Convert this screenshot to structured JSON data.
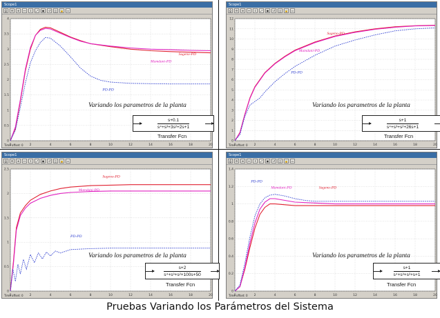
{
  "caption": "Pruebas Variando los Parámetros del Sistema",
  "window_title": "Scope1",
  "status_text": "Time offset:  0",
  "overlay_text": "Variando los parametros de la planta",
  "tf_label": "Transfer Fcn",
  "colors": {
    "sugeno": "#e02030",
    "mamdani": "#e020c0",
    "pd": "#3040d0",
    "plot_bg": "#ffffff"
  },
  "chart_data": [
    {
      "type": "line",
      "panel": "top-left",
      "xlim": [
        0,
        20
      ],
      "ylim": [
        0,
        4
      ],
      "x_ticks": [
        "0",
        "2",
        "4",
        "6",
        "8",
        "10",
        "12",
        "14",
        "16",
        "18",
        "20"
      ],
      "y_ticks": [
        "0",
        "0.5",
        "1",
        "1.5",
        "2",
        "2.5",
        "3",
        "3.5",
        "4"
      ],
      "transfer_function": {
        "num": "s+0.1",
        "den": "s⁴+s³+3s²+2s+1"
      },
      "series": [
        {
          "name": "Sugeno-PD",
          "x": [
            0,
            0.5,
            1,
            1.5,
            2,
            2.5,
            3,
            3.5,
            4,
            5,
            6,
            7,
            8,
            10,
            12,
            14,
            16,
            18,
            20
          ],
          "y": [
            0,
            0.4,
            1.3,
            2.3,
            3.0,
            3.45,
            3.65,
            3.72,
            3.7,
            3.55,
            3.4,
            3.28,
            3.18,
            3.08,
            3.0,
            2.95,
            2.92,
            2.9,
            2.88
          ]
        },
        {
          "name": "Mamdani-PD",
          "x": [
            0,
            0.5,
            1,
            1.5,
            2,
            2.5,
            3,
            3.5,
            4,
            5,
            6,
            7,
            8,
            10,
            12,
            14,
            16,
            18,
            20
          ],
          "y": [
            0,
            0.45,
            1.35,
            2.35,
            3.05,
            3.45,
            3.62,
            3.68,
            3.66,
            3.52,
            3.38,
            3.26,
            3.18,
            3.1,
            3.04,
            3.0,
            2.98,
            2.96,
            2.95
          ]
        },
        {
          "name": "PD-PD",
          "x": [
            0,
            0.5,
            1,
            1.5,
            2,
            2.5,
            3,
            3.5,
            4,
            5,
            6,
            7,
            8,
            9,
            10,
            12,
            14,
            16,
            18,
            20
          ],
          "y": [
            0,
            0.35,
            1.1,
            1.9,
            2.55,
            2.95,
            3.22,
            3.38,
            3.36,
            3.1,
            2.75,
            2.38,
            2.12,
            1.98,
            1.92,
            1.88,
            1.87,
            1.86,
            1.86,
            1.86
          ]
        }
      ]
    },
    {
      "type": "line",
      "panel": "top-right",
      "xlim": [
        0,
        20
      ],
      "ylim": [
        0,
        12
      ],
      "x_ticks": [
        "0",
        "2",
        "4",
        "6",
        "8",
        "10",
        "12",
        "14",
        "16",
        "18",
        "20"
      ],
      "y_ticks": [
        "0",
        "1",
        "2",
        "3",
        "4",
        "5",
        "6",
        "7",
        "8",
        "9",
        "10",
        "11",
        "12"
      ],
      "transfer_function": {
        "num": "s+1",
        "den": "s⁴+s³+s²+26s+1"
      },
      "series": [
        {
          "name": "Sugeno-PD",
          "x": [
            0,
            0.5,
            1,
            1.5,
            2,
            3,
            4,
            5,
            6,
            8,
            10,
            12,
            14,
            16,
            18,
            20
          ],
          "y": [
            0,
            0.8,
            2.6,
            4.2,
            5.3,
            6.7,
            7.6,
            8.3,
            8.9,
            9.7,
            10.3,
            10.7,
            11.0,
            11.2,
            11.3,
            11.35
          ]
        },
        {
          "name": "Mamdani-PD",
          "x": [
            0,
            0.5,
            1,
            1.5,
            2,
            3,
            4,
            5,
            6,
            8,
            10,
            12,
            14,
            16,
            18,
            20
          ],
          "y": [
            0,
            0.75,
            2.55,
            4.15,
            5.25,
            6.65,
            7.55,
            8.25,
            8.85,
            9.65,
            10.25,
            10.65,
            10.95,
            11.15,
            11.28,
            11.33
          ]
        },
        {
          "name": "PD-PD",
          "x": [
            0,
            0.5,
            1,
            1.5,
            2,
            2.5,
            3,
            4,
            5,
            6,
            8,
            10,
            12,
            14,
            16,
            18,
            20
          ],
          "y": [
            0,
            0.6,
            2.4,
            3.5,
            3.85,
            4.2,
            4.8,
            5.8,
            6.6,
            7.3,
            8.4,
            9.3,
            9.9,
            10.4,
            10.8,
            11.0,
            11.1
          ]
        }
      ]
    },
    {
      "type": "line",
      "panel": "bottom-left",
      "xlim": [
        0,
        20
      ],
      "ylim": [
        0,
        2.5
      ],
      "x_ticks": [
        "0",
        "2",
        "4",
        "6",
        "8",
        "10",
        "12",
        "14",
        "16",
        "18",
        "20"
      ],
      "y_ticks": [
        "0",
        "0.5",
        "1",
        "1.5",
        "2",
        "2.5"
      ],
      "transfer_function": {
        "num": "s+2",
        "den": "s⁴+s³+s²+100s+50"
      },
      "series": [
        {
          "name": "Sugeno-PD",
          "x": [
            0,
            0.3,
            0.6,
            1,
            1.5,
            2,
            3,
            4,
            5,
            6,
            8,
            10,
            12,
            14,
            16,
            18,
            20
          ],
          "y": [
            0,
            0.6,
            1.3,
            1.6,
            1.75,
            1.86,
            1.98,
            2.05,
            2.1,
            2.13,
            2.16,
            2.17,
            2.18,
            2.18,
            2.18,
            2.18,
            2.18
          ]
        },
        {
          "name": "Mamdani-PD",
          "x": [
            0,
            0.3,
            0.6,
            1,
            1.5,
            2,
            3,
            4,
            5,
            6,
            8,
            10,
            12,
            14,
            16,
            18,
            20
          ],
          "y": [
            0,
            0.55,
            1.25,
            1.55,
            1.7,
            1.8,
            1.9,
            1.96,
            2.0,
            2.02,
            2.04,
            2.05,
            2.05,
            2.05,
            2.05,
            2.05,
            2.05
          ]
        },
        {
          "name": "PD-PD",
          "x": [
            0,
            0.25,
            0.5,
            0.75,
            1,
            1.3,
            1.6,
            2,
            2.4,
            2.8,
            3.2,
            3.6,
            4,
            4.5,
            5,
            6,
            7,
            8,
            10,
            12,
            14,
            16,
            18,
            20
          ],
          "y": [
            0,
            0.45,
            0.2,
            0.55,
            0.35,
            0.65,
            0.45,
            0.75,
            0.58,
            0.78,
            0.66,
            0.8,
            0.72,
            0.82,
            0.78,
            0.85,
            0.86,
            0.87,
            0.88,
            0.88,
            0.88,
            0.88,
            0.88,
            0.88
          ]
        }
      ]
    },
    {
      "type": "line",
      "panel": "bottom-right",
      "xlim": [
        0,
        20
      ],
      "ylim": [
        0,
        1.4
      ],
      "x_ticks": [
        "0",
        "2",
        "4",
        "6",
        "8",
        "10",
        "12",
        "14",
        "16",
        "18",
        "20"
      ],
      "y_ticks": [
        "0",
        "0.2",
        "0.4",
        "0.6",
        "0.8",
        "1",
        "1.2",
        "1.4"
      ],
      "transfer_function": {
        "num": "s+1",
        "den": "s⁴+s³+s²+s+1"
      },
      "series": [
        {
          "name": "Sugeno-PD",
          "x": [
            0,
            0.5,
            1,
            1.5,
            2,
            2.5,
            3,
            3.5,
            4,
            5,
            6,
            8,
            10,
            12,
            14,
            16,
            18,
            20
          ],
          "y": [
            0,
            0.05,
            0.25,
            0.5,
            0.72,
            0.88,
            0.96,
            1.0,
            1.0,
            0.99,
            0.98,
            0.98,
            0.98,
            0.98,
            0.98,
            0.98,
            0.98,
            0.98
          ]
        },
        {
          "name": "Mamdani-PD",
          "x": [
            0,
            0.5,
            1,
            1.5,
            2,
            2.5,
            3,
            3.5,
            4,
            5,
            6,
            8,
            10,
            12,
            14,
            16,
            18,
            20
          ],
          "y": [
            0,
            0.05,
            0.27,
            0.55,
            0.78,
            0.94,
            1.02,
            1.06,
            1.06,
            1.04,
            1.02,
            1.01,
            1.0,
            1.0,
            1.0,
            1.0,
            1.0,
            1.0
          ]
        },
        {
          "name": "PD-PD",
          "x": [
            0,
            0.5,
            1,
            1.5,
            2,
            2.5,
            3,
            3.5,
            4,
            4.5,
            5,
            6,
            7,
            8,
            10,
            12,
            14,
            16,
            18,
            20
          ],
          "y": [
            0,
            0.07,
            0.32,
            0.62,
            0.86,
            1.0,
            1.07,
            1.1,
            1.11,
            1.1,
            1.09,
            1.06,
            1.04,
            1.03,
            1.03,
            1.03,
            1.03,
            1.03,
            1.03,
            1.03
          ]
        }
      ]
    }
  ],
  "labels": {
    "top-left": {
      "Sugeno-PD": "Sugeno-PD",
      "Mamdani-PD": "Mamdani-PD",
      "PD-PD": "PD-PD"
    },
    "top-right": {
      "Sugeno-PD": "Sugeno-PD",
      "Mamdani-PD": "Mamdani-PD",
      "PD-PD": "PD-PD"
    },
    "bottom-left": {
      "Sugeno-PD": "Sugeno-PD",
      "Mamdani-PD": "Mamdani-PD",
      "PD-PD": "PD-PD"
    },
    "bottom-right": {
      "Sugeno-PD": "Sugeno-PD",
      "Mamdani-PD": "Mamdani-PD",
      "PD-PD": "PD-PD"
    }
  },
  "toolbar_icons": [
    "print-icon",
    "params-icon",
    "zoom-icon",
    "zoom-x-icon",
    "zoom-y-icon",
    "autoscale-icon",
    "save-axes-icon",
    "restore-icon",
    "float-icon",
    "lock-icon",
    "select-icon"
  ]
}
